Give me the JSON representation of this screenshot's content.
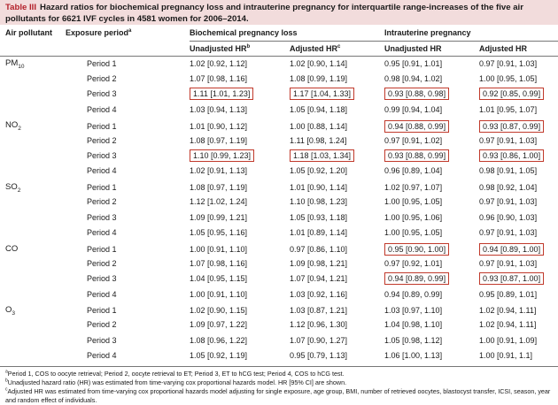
{
  "caption": {
    "label": "Table III",
    "text": "Hazard ratios for biochemical pregnancy loss and intrauterine pregnancy for interquartile range-increases of the five air pollutants for 6621 IVF cycles in 4581 women for 2006–2014."
  },
  "headers": {
    "air_pollutant": "Air pollutant",
    "exposure_period": "Exposure period",
    "exposure_sup": "a",
    "group_bpl": "Biochemical pregnancy loss",
    "group_iup": "Intrauterine pregnancy",
    "unadjusted": "Unadjusted HR",
    "unadjusted_sup": "b",
    "adjusted": "Adjusted HR",
    "adjusted_sup": "c"
  },
  "pollutants": [
    {
      "name_main": "PM",
      "name_sub": "10",
      "rows": [
        {
          "period": "Period 1",
          "bpl_u": "1.02 [0.92, 1.12]",
          "bpl_a": "1.02 [0.90, 1.14]",
          "iup_u": "0.95 [0.91, 1.01]",
          "iup_a": "0.97 [0.91, 1.03]"
        },
        {
          "period": "Period 2",
          "bpl_u": "1.07 [0.98, 1.16]",
          "bpl_a": "1.08 [0.99, 1.19]",
          "iup_u": "0.98 [0.94, 1.02]",
          "iup_a": "1.00 [0.95, 1.05]"
        },
        {
          "period": "Period 3",
          "bpl_u": "1.11 [1.01, 1.23]",
          "bpl_a": "1.17 [1.04, 1.33]",
          "iup_u": "0.93 [0.88, 0.98]",
          "iup_a": "0.92 [0.85, 0.99]"
        },
        {
          "period": "Period 4",
          "bpl_u": "1.03 [0.94, 1.13]",
          "bpl_a": "1.05 [0.94, 1.18]",
          "iup_u": "0.99 [0.94, 1.04]",
          "iup_a": "1.01 [0.95, 1.07]"
        }
      ]
    },
    {
      "name_main": "NO",
      "name_sub": "2",
      "rows": [
        {
          "period": "Period 1",
          "bpl_u": "1.01 [0.90, 1.12]",
          "bpl_a": "1.00 [0.88, 1.14]",
          "iup_u": "0.94 [0.88, 0.99]",
          "iup_a": "0.93 [0.87, 0.99]"
        },
        {
          "period": "Period 2",
          "bpl_u": "1.08 [0.97, 1.19]",
          "bpl_a": "1.11 [0.98, 1.24]",
          "iup_u": "0.97 [0.91, 1.02]",
          "iup_a": "0.97 [0.91, 1.03]"
        },
        {
          "period": "Period 3",
          "bpl_u": "1.10 [0.99, 1.23]",
          "bpl_a": "1.18 [1.03, 1.34]",
          "iup_u": "0.93 [0.88, 0.99]",
          "iup_a": "0.93 [0.86, 1.00]"
        },
        {
          "period": "Period 4",
          "bpl_u": "1.02 [0.91, 1.13]",
          "bpl_a": "1.05 [0.92, 1.20]",
          "iup_u": "0.96 [0.89, 1.04]",
          "iup_a": "0.98 [0.91, 1.05]"
        }
      ]
    },
    {
      "name_main": "SO",
      "name_sub": "2",
      "rows": [
        {
          "period": "Period 1",
          "bpl_u": "1.08 [0.97, 1.19]",
          "bpl_a": "1.01 [0.90, 1.14]",
          "iup_u": "1.02 [0.97, 1.07]",
          "iup_a": "0.98 [0.92, 1.04]"
        },
        {
          "period": "Period 2",
          "bpl_u": "1.12 [1.02, 1.24]",
          "bpl_a": "1.10 [0.98, 1.23]",
          "iup_u": "1.00 [0.95, 1.05]",
          "iup_a": "0.97 [0.91, 1.03]"
        },
        {
          "period": "Period 3",
          "bpl_u": "1.09 [0.99, 1.21]",
          "bpl_a": "1.05 [0.93, 1.18]",
          "iup_u": "1.00 [0.95, 1.06]",
          "iup_a": "0.96 [0.90, 1.03]"
        },
        {
          "period": "Period 4",
          "bpl_u": "1.05 [0.95, 1.16]",
          "bpl_a": "1.01 [0.89, 1.14]",
          "iup_u": "1.00 [0.95, 1.05]",
          "iup_a": "0.97 [0.91, 1.03]"
        }
      ]
    },
    {
      "name_main": "CO",
      "name_sub": "",
      "rows": [
        {
          "period": "Period 1",
          "bpl_u": "1.00 [0.91, 1.10]",
          "bpl_a": "0.97 [0.86, 1.10]",
          "iup_u": "0.95 [0.90, 1.00]",
          "iup_a": "0.94 [0.89, 1.00]"
        },
        {
          "period": "Period 2",
          "bpl_u": "1.07 [0.98, 1.16]",
          "bpl_a": "1.09 [0.98, 1.21]",
          "iup_u": "0.97 [0.92, 1.01]",
          "iup_a": "0.97 [0.91, 1.03]"
        },
        {
          "period": "Period 3",
          "bpl_u": "1.04 [0.95, 1.15]",
          "bpl_a": "1.07 [0.94, 1.21]",
          "iup_u": "0.94 [0.89, 0.99]",
          "iup_a": "0.93 [0.87, 1.00]"
        },
        {
          "period": "Period 4",
          "bpl_u": "1.00 [0.91, 1.10]",
          "bpl_a": "1.03 [0.92, 1.16]",
          "iup_u": "0.94 [0.89, 0.99]",
          "iup_a": "0.95 [0.89, 1.01]"
        }
      ]
    },
    {
      "name_main": "O",
      "name_sub": "3",
      "rows": [
        {
          "period": "Period 1",
          "bpl_u": "1.02 [0.90, 1.15]",
          "bpl_a": "1.03 [0.87, 1.21]",
          "iup_u": "1.03 [0.97, 1.10]",
          "iup_a": "1.02 [0.94, 1.11]"
        },
        {
          "period": "Period 2",
          "bpl_u": "1.09 [0.97, 1.22]",
          "bpl_a": "1.12 [0.96, 1.30]",
          "iup_u": "1.04 [0.98, 1.10]",
          "iup_a": "1.02 [0.94, 1.11]"
        },
        {
          "period": "Period 3",
          "bpl_u": "1.08 [0.96, 1.22]",
          "bpl_a": "1.07 [0.90, 1.27]",
          "iup_u": "1.05 [0.98, 1.12]",
          "iup_a": "1.00 [0.91, 1.09]"
        },
        {
          "period": "Period 4",
          "bpl_u": "1.05 [0.92, 1.19]",
          "bpl_a": "0.95 [0.79, 1.13]",
          "iup_u": "1.06 [1.00, 1.13]",
          "iup_a": "1.00 [0.91, 1.1]"
        }
      ]
    }
  ],
  "footnotes": [
    {
      "mark": "a",
      "text": "Period 1, COS to oocyte retrieval; Period 2, oocyte retrieval to ET; Period 3, ET to hCG test; Period 4, COS to hCG test."
    },
    {
      "mark": "b",
      "text": "Unadjusted hazard ratio (HR) was estimated from time-varying cox proportional hazards model. HR [95% CI] are shown."
    },
    {
      "mark": "c",
      "text": "Adjusted HR was estimated from time-varying cox proportional hazards model adjusting for single exposure, age group, BMI, number of retrieved oocytes, blastocyst transfer, ICSI, season, year and random effect of individuals."
    }
  ],
  "colors": {
    "caption_bg": "#f2dcdc",
    "caption_label": "#b3202a",
    "highlight_border": "#c0392b"
  }
}
